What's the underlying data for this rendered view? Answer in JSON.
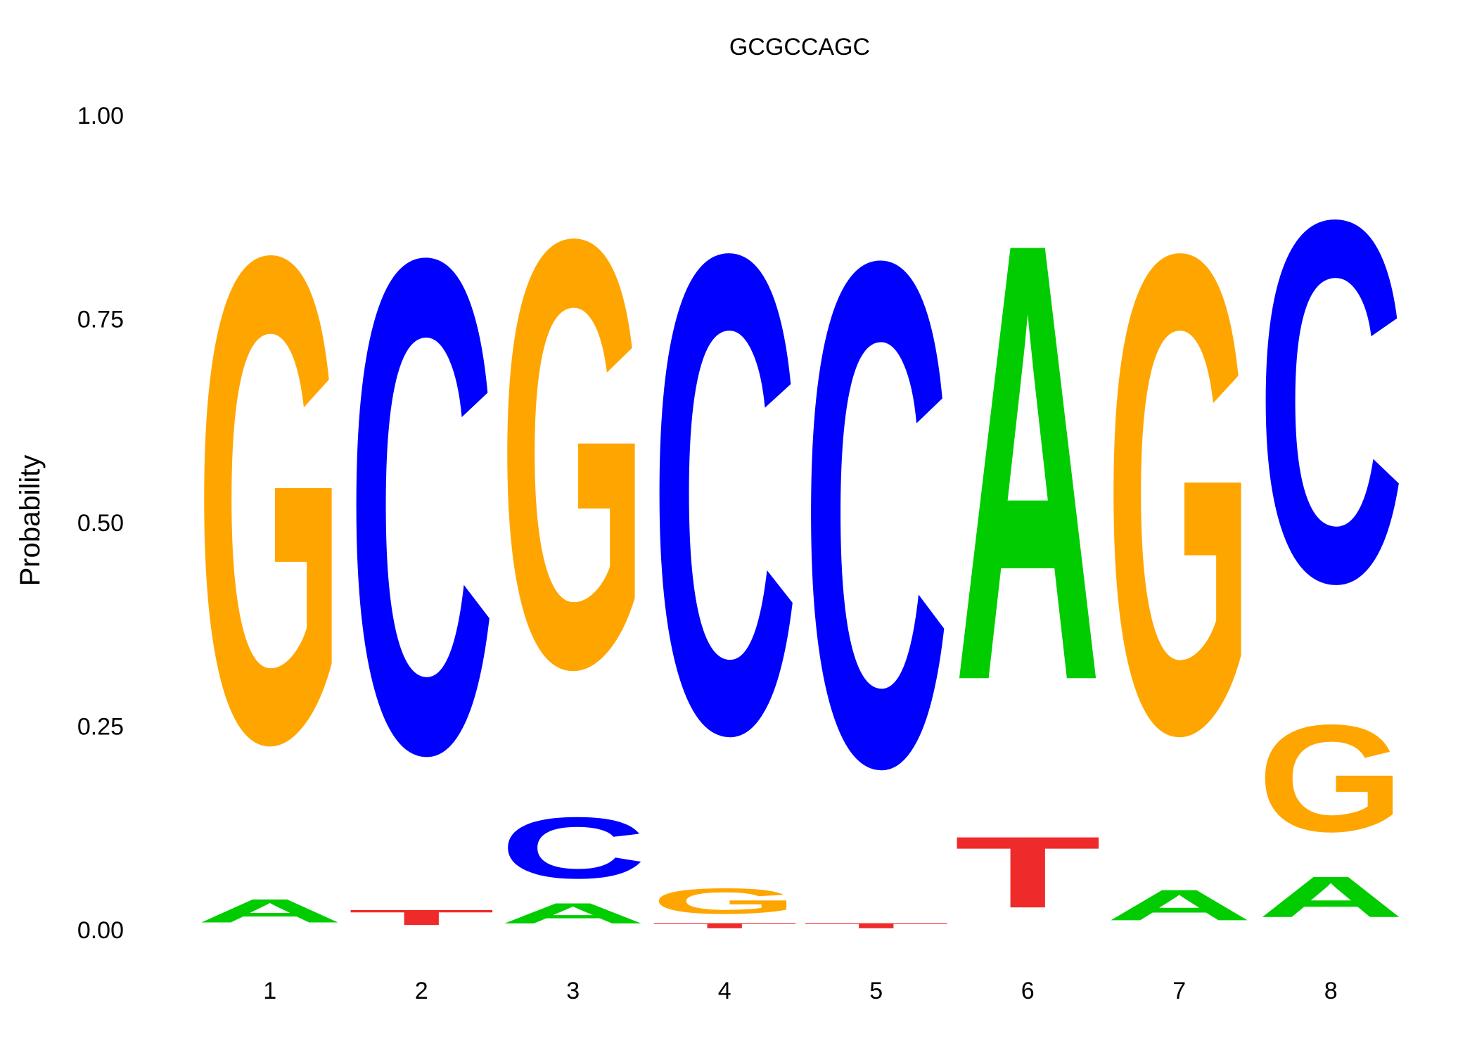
{
  "chart_data": {
    "type": "logo",
    "title": "GCGCCAGC",
    "y_label": "Probability",
    "categories": [
      "1",
      "2",
      "3",
      "4",
      "5",
      "6",
      "7",
      "8"
    ],
    "series": [
      {
        "name": "A",
        "color": "#00cc00",
        "values": [
          0.046,
          0.0,
          0.04,
          0.0,
          0.0,
          0.86,
          0.06,
          0.08
        ]
      },
      {
        "name": "C",
        "color": "#0000ff",
        "values": [
          0.0,
          0.97,
          0.12,
          0.94,
          0.99,
          0.0,
          0.0,
          0.71
        ]
      },
      {
        "name": "G",
        "color": "#ffa500",
        "values": [
          0.954,
          0.0,
          0.84,
          0.05,
          0.0,
          0.0,
          0.94,
          0.21
        ]
      },
      {
        "name": "T",
        "color": "#ee2a2a",
        "values": [
          0.0,
          0.03,
          0.0,
          0.01,
          0.01,
          0.14,
          0.0,
          0.0
        ]
      }
    ],
    "ylim": [
      0,
      1
    ],
    "yticks": [
      {
        "value": 0,
        "label": "0.00"
      },
      {
        "value": 0.25,
        "label": "0.25"
      },
      {
        "value": 0.5,
        "label": "0.50"
      },
      {
        "value": 0.75,
        "label": "0.75"
      },
      {
        "value": 1,
        "label": "1.00"
      }
    ]
  }
}
